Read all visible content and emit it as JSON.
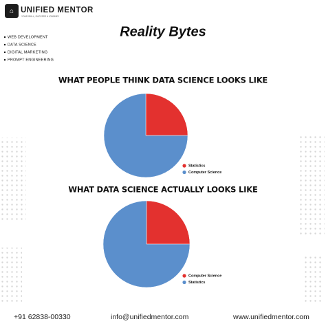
{
  "brand": {
    "name": "UNIFIED MENTOR",
    "tagline": "YOUR SKILL, SUCCESS & JOURNEY"
  },
  "headline": "Reality Bytes",
  "menu": [
    "WEB DEVELOPMENT",
    "DATA SCIENCE",
    "DIGITAL MARKETING",
    "PROMPT ENGINEERING"
  ],
  "chart_data": [
    {
      "type": "pie",
      "title": "WHAT PEOPLE THINK DATA SCIENCE LOOKS LIKE",
      "categories": [
        "Statistics",
        "Computer Science"
      ],
      "values": [
        25,
        75
      ],
      "colors": [
        "#e3312f",
        "#5b8fcc"
      ]
    },
    {
      "type": "pie",
      "title": "WHAT DATA SCIENCE ACTUALLY LOOKS LIKE",
      "categories": [
        "Computer Science",
        "Statistics"
      ],
      "values": [
        25,
        75
      ],
      "colors": [
        "#e3312f",
        "#5b8fcc"
      ]
    }
  ],
  "footer": {
    "phone": "+91 62838-00330",
    "email": "info@unifiedmentor.com",
    "website": "www.unifiedmentor.com"
  }
}
